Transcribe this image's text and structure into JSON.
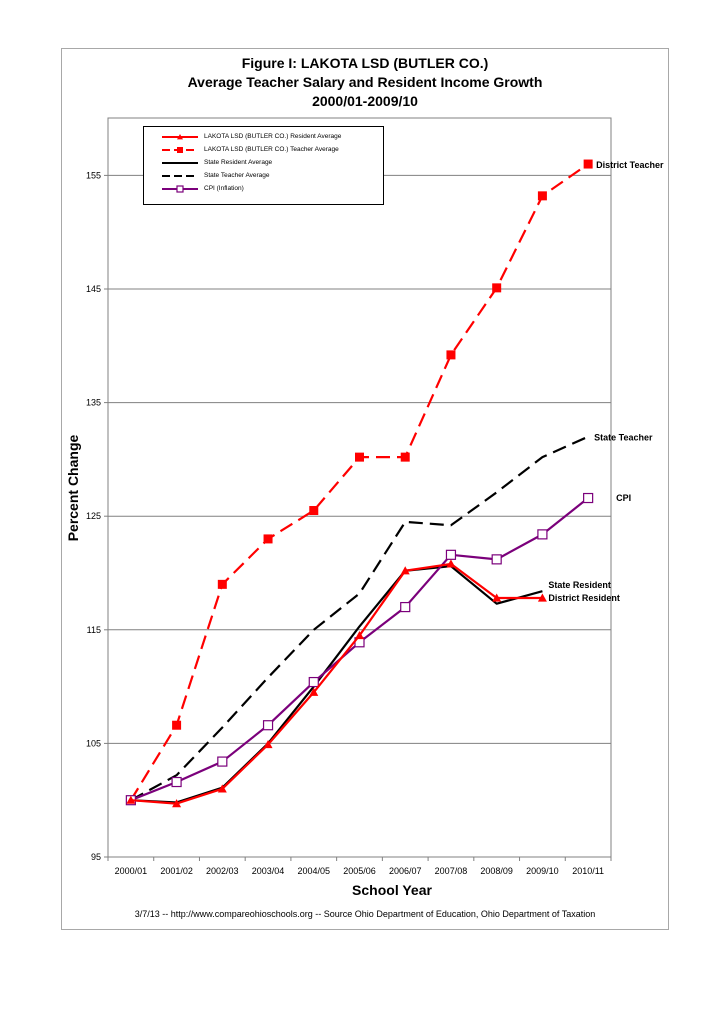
{
  "title": {
    "line1": "Figure I: LAKOTA LSD (BUTLER CO.)",
    "line2": "Average Teacher Salary and Resident Income Growth",
    "line3": "2000/01-2009/10"
  },
  "footer": "3/7/13 -- http://www.compareohioschools.org  -- Source Ohio Department of Education, Ohio Department of Taxation",
  "chart_data": {
    "type": "line",
    "title": "Figure I: LAKOTA LSD (BUTLER CO.) Average Teacher Salary and Resident Income Growth 2000/01-2009/10",
    "xlabel": "School Year",
    "ylabel": "Percent Change",
    "categories": [
      "2000/01",
      "2001/02",
      "2002/03",
      "2003/04",
      "2004/05",
      "2005/06",
      "2006/07",
      "2007/08",
      "2008/09",
      "2009/10",
      "2010/11"
    ],
    "ylim": [
      95,
      155
    ],
    "yticks": [
      95,
      105,
      115,
      125,
      135,
      145,
      155
    ],
    "grid": true,
    "legend_position": "top-left",
    "series": [
      {
        "name": "LAKOTA LSD (BUTLER CO.) Resident Average",
        "end_label": "District Resident",
        "color": "#ff0000",
        "style": "solid",
        "marker": "triangle",
        "values": [
          100,
          99.7,
          101,
          104.9,
          109.5,
          114.5,
          120.2,
          120.8,
          117.8,
          117.8,
          null
        ]
      },
      {
        "name": "LAKOTA LSD (BUTLER CO.) Teacher Average",
        "end_label": "District Teacher",
        "color": "#ff0000",
        "style": "dashed",
        "marker": "square",
        "values": [
          100,
          106.6,
          119,
          123,
          125.5,
          130.2,
          130.2,
          139.2,
          145.1,
          153.2,
          156
        ]
      },
      {
        "name": "State Resident Average",
        "end_label": "State Resident",
        "color": "#000000",
        "style": "solid",
        "marker": "none",
        "values": [
          100,
          99.8,
          101.1,
          105,
          110,
          115.3,
          120.2,
          120.6,
          117.3,
          118.4,
          null
        ]
      },
      {
        "name": "State Teacher Average",
        "end_label": "State Teacher",
        "color": "#000000",
        "style": "dashed",
        "marker": "none",
        "values": [
          100,
          102.2,
          106.4,
          110.8,
          115,
          118.2,
          124.5,
          124.2,
          127.1,
          130.2,
          132
        ]
      },
      {
        "name": "CPI (Inflation)",
        "end_label": "CPI",
        "color": "#7b007b",
        "style": "solid",
        "marker": "open-square",
        "values": [
          100,
          101.6,
          103.4,
          106.6,
          110.4,
          113.9,
          117,
          121.6,
          121.2,
          123.4,
          126.6
        ]
      }
    ]
  }
}
